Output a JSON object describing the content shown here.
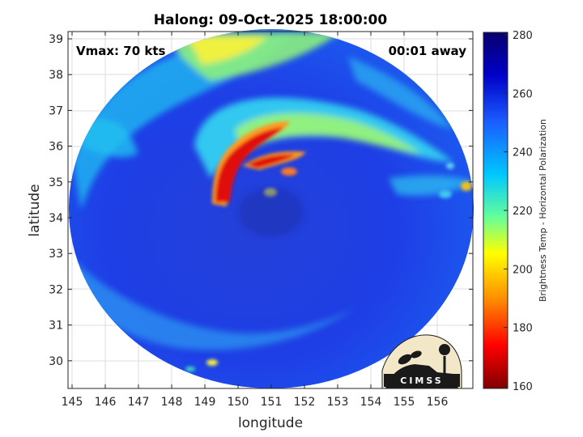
{
  "title": "Halong: 09-Oct-2025 18:00:00",
  "vmax_label": "Vmax: 70 kts",
  "time_away_label": "00:01 away",
  "xlabel": "longitude",
  "ylabel": "latitude",
  "x_ticks": [
    "145",
    "146",
    "147",
    "148",
    "149",
    "150",
    "151",
    "152",
    "153",
    "154",
    "155",
    "156"
  ],
  "y_ticks": [
    "39",
    "38",
    "37",
    "36",
    "35",
    "34",
    "33",
    "32",
    "31",
    "30"
  ],
  "colorbar": {
    "label": "Brightness Temp - Horizontal Polarization",
    "ticks": [
      "280",
      "260",
      "240",
      "220",
      "200",
      "180",
      "160"
    ],
    "colors": [
      "#08006e",
      "#0000c8",
      "#1a5cff",
      "#00c8ff",
      "#66ff99",
      "#ffff00",
      "#ff8c00",
      "#ff0000",
      "#800000"
    ]
  },
  "logo_text": "CIMSS",
  "colors": {
    "cold_core": "#e01010",
    "warm_band": "#f0f020",
    "background_blue": "#1f3fe0"
  }
}
